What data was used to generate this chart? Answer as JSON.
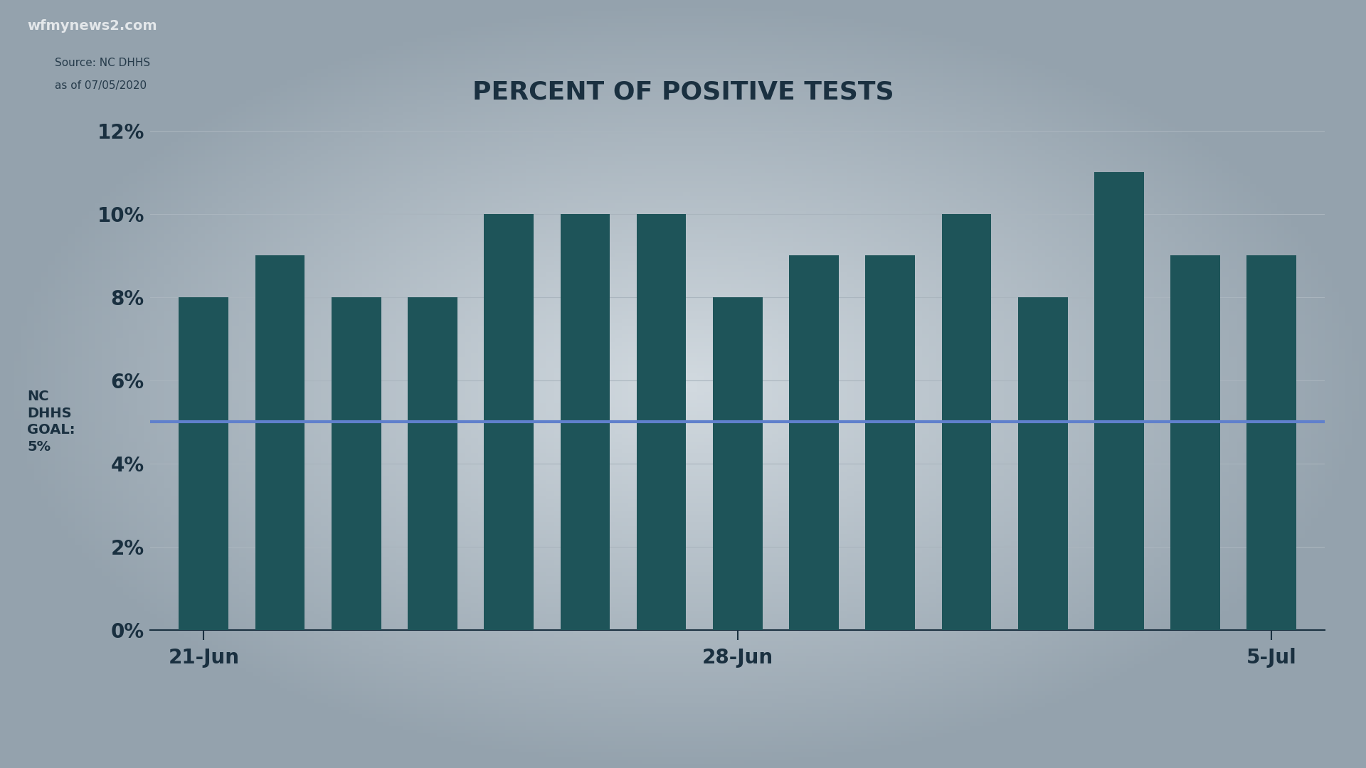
{
  "title": "PERCENT OF POSITIVE TESTS",
  "source_label": "Source: NC DHHS",
  "source_date": "as of 07/05/2020",
  "watermark": "wfmynews2.com",
  "bar_color": "#1e5459",
  "goal_line_color": "#6080cc",
  "goal_value": 5.0,
  "goal_label": "NC\nDHHS\nGOAL:\n5%",
  "bg_center_color": "#d2dae0",
  "bg_edge_color": "#9aaab5",
  "ylim": [
    0,
    12
  ],
  "yticks": [
    0,
    2,
    4,
    6,
    8,
    10,
    12
  ],
  "ytick_labels": [
    "0%",
    "2%",
    "4%",
    "6%",
    "8%",
    "10%",
    "12%"
  ],
  "values": [
    8,
    9,
    8,
    8,
    10,
    10,
    10,
    8,
    9,
    9,
    10,
    8,
    11,
    9,
    9
  ],
  "xtick_positions": [
    0,
    7,
    14
  ],
  "xtick_labels": [
    "21-Jun",
    "28-Jun",
    "5-Jul"
  ],
  "title_fontsize": 26,
  "tick_fontsize": 20,
  "goal_fontsize": 14,
  "source_fontsize": 11,
  "bar_width": 0.65,
  "grid_color": "#aab5be",
  "text_color": "#1a3040"
}
